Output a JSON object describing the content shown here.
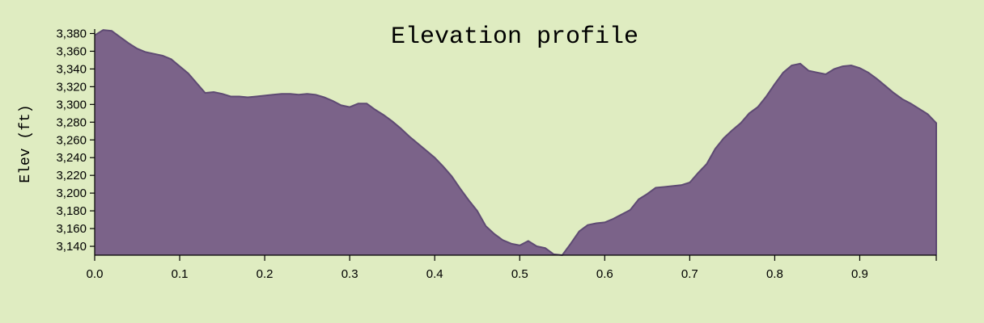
{
  "chart_data": {
    "type": "area",
    "title": "Elevation profile",
    "xlabel": "",
    "ylabel": "Elev (ft)",
    "xlim": [
      0,
      0.99
    ],
    "ylim": [
      3130,
      3385
    ],
    "grid": false,
    "x_ticks": [
      0.0,
      0.1,
      0.2,
      0.3,
      0.4,
      0.5,
      0.6,
      0.7,
      0.8,
      0.9
    ],
    "x_tick_labels": [
      "0.0",
      "0.1",
      "0.2",
      "0.3",
      "0.4",
      "0.5",
      "0.6",
      "0.7",
      "0.8",
      "0.9"
    ],
    "y_ticks": [
      3140,
      3160,
      3180,
      3200,
      3220,
      3240,
      3260,
      3280,
      3300,
      3320,
      3340,
      3360,
      3380
    ],
    "y_tick_labels": [
      "3,140",
      "3,160",
      "3,180",
      "3,200",
      "3,220",
      "3,240",
      "3,260",
      "3,280",
      "3,300",
      "3,320",
      "3,340",
      "3,360",
      "3,380"
    ],
    "colors": {
      "fill": "#7b6389",
      "line": "#5e4a73",
      "background": "#dfecc1"
    },
    "series": [
      {
        "x": [
          0.0,
          0.01,
          0.02,
          0.03,
          0.04,
          0.05,
          0.06,
          0.07,
          0.08,
          0.09,
          0.1,
          0.11,
          0.12,
          0.13,
          0.14,
          0.15,
          0.16,
          0.17,
          0.18,
          0.19,
          0.2,
          0.21,
          0.22,
          0.23,
          0.24,
          0.25,
          0.26,
          0.27,
          0.28,
          0.29,
          0.3,
          0.31,
          0.32,
          0.33,
          0.34,
          0.35,
          0.36,
          0.37,
          0.38,
          0.39,
          0.4,
          0.41,
          0.42,
          0.43,
          0.44,
          0.45,
          0.46,
          0.47,
          0.48,
          0.49,
          0.5,
          0.51,
          0.52,
          0.53,
          0.54,
          0.55,
          0.56,
          0.57,
          0.58,
          0.59,
          0.6,
          0.61,
          0.62,
          0.63,
          0.64,
          0.65,
          0.66,
          0.67,
          0.68,
          0.69,
          0.7,
          0.71,
          0.72,
          0.73,
          0.74,
          0.75,
          0.76,
          0.77,
          0.78,
          0.79,
          0.8,
          0.81,
          0.82,
          0.83,
          0.84,
          0.85,
          0.86,
          0.87,
          0.88,
          0.89,
          0.9,
          0.91,
          0.92,
          0.93,
          0.94,
          0.95,
          0.96,
          0.97,
          0.98,
          0.99
        ],
        "values": [
          3378,
          3384,
          3383,
          3376,
          3369,
          3363,
          3359,
          3357,
          3355,
          3351,
          3343,
          3335,
          3324,
          3313,
          3314,
          3312,
          3309,
          3309,
          3308,
          3309,
          3310,
          3311,
          3312,
          3312,
          3311,
          3312,
          3311,
          3308,
          3304,
          3299,
          3297,
          3301,
          3301,
          3294,
          3288,
          3281,
          3273,
          3264,
          3256,
          3248,
          3240,
          3230,
          3219,
          3205,
          3192,
          3180,
          3163,
          3154,
          3147,
          3143,
          3141,
          3146,
          3140,
          3138,
          3131,
          3130,
          3143,
          3157,
          3164,
          3166,
          3167,
          3171,
          3176,
          3181,
          3193,
          3199,
          3206,
          3207,
          3208,
          3209,
          3212,
          3223,
          3233,
          3250,
          3262,
          3271,
          3279,
          3290,
          3297,
          3309,
          3323,
          3336,
          3344,
          3346,
          3338,
          3336,
          3334,
          3340,
          3343,
          3344,
          3341,
          3336,
          3329,
          3321,
          3313,
          3306,
          3301,
          3295,
          3289,
          3279
        ]
      }
    ]
  }
}
